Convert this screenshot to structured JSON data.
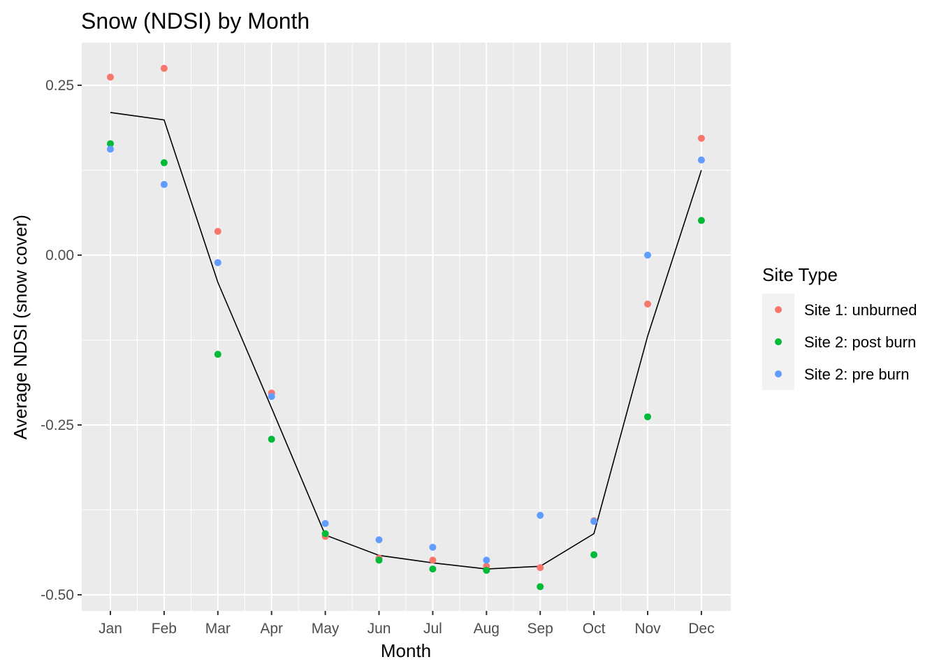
{
  "chart_data": {
    "type": "scatter",
    "title": "Snow (NDSI) by Month",
    "xlabel": "Month",
    "ylabel": "Average NDSI (snow cover)",
    "categories": [
      "Jan",
      "Feb",
      "Mar",
      "Apr",
      "May",
      "Jun",
      "Jul",
      "Aug",
      "Sep",
      "Oct",
      "Nov",
      "Dec"
    ],
    "ylim": [
      -0.52,
      0.31
    ],
    "yticks": [
      0.25,
      0.0,
      -0.25,
      -0.5
    ],
    "ytick_labels": [
      "0.25",
      "0.00",
      "-0.25",
      "-0.50"
    ],
    "grid": true,
    "legend": {
      "title": "Site Type",
      "placement": "right"
    },
    "series": [
      {
        "name": "Site 1: unburned",
        "color": "#F8766D",
        "values": [
          0.262,
          0.275,
          0.035,
          -0.203,
          -0.414,
          -0.446,
          -0.449,
          -0.458,
          -0.46,
          -0.391,
          -0.072,
          0.172
        ]
      },
      {
        "name": "Site 2: post burn",
        "color": "#00BA38",
        "values": [
          0.164,
          0.136,
          -0.146,
          -0.271,
          -0.41,
          -0.449,
          -0.462,
          -0.464,
          -0.488,
          -0.441,
          -0.238,
          0.051
        ]
      },
      {
        "name": "Site 2: pre burn",
        "color": "#619CFF",
        "values": [
          0.156,
          0.104,
          -0.011,
          -0.208,
          -0.395,
          -0.419,
          -0.43,
          -0.449,
          -0.383,
          -0.392,
          0.0,
          0.14
        ]
      }
    ],
    "trend_line": {
      "color": "#000000",
      "values": [
        0.21,
        0.199,
        -0.04,
        -0.225,
        -0.412,
        -0.442,
        -0.453,
        -0.462,
        -0.458,
        -0.41,
        -0.119,
        0.125
      ]
    }
  }
}
